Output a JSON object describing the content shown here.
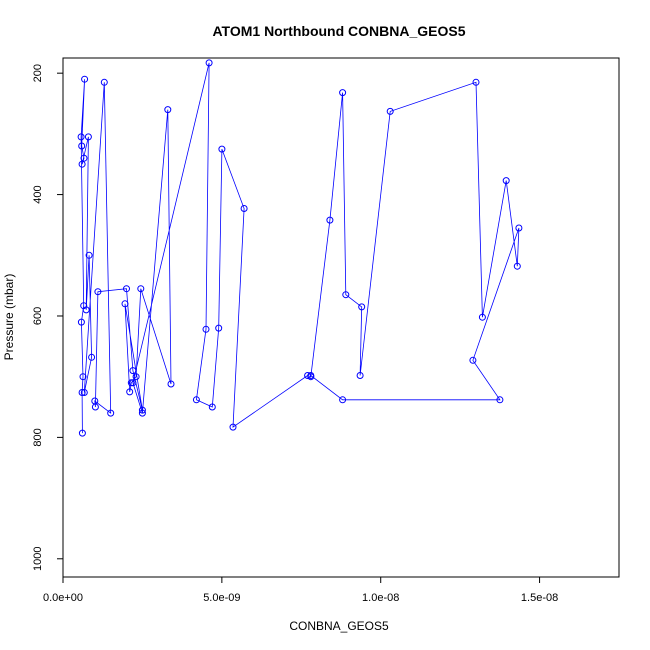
{
  "chart_data": {
    "type": "line",
    "title": "ATOM1 Northbound CONBNA_GEOS5",
    "xlabel": "CONBNA_GEOS5",
    "ylabel": "Pressure (mbar)",
    "xlim": [
      0,
      1.75e-08
    ],
    "ylim": [
      1030,
      175
    ],
    "y_reversed": true,
    "x_ticks": [
      0,
      5e-09,
      1e-08,
      1.5e-08
    ],
    "x_tick_labels": [
      "0.0e+00",
      "5.0e-09",
      "1.0e-08",
      "1.5e-08"
    ],
    "y_ticks": [
      200,
      400,
      600,
      800,
      1000
    ],
    "y_tick_labels": [
      "200",
      "400",
      "600",
      "800",
      "1000"
    ],
    "series_color": "#0000ff",
    "grid": false,
    "series": [
      {
        "x": [
          6.1e-10,
          6e-10,
          6.3e-10,
          5.8e-10,
          6.5e-10,
          5.7e-10,
          6.8e-10,
          5.9e-10,
          6.6e-10,
          6e-10,
          8e-10,
          7.3e-10,
          8.2e-10,
          9e-10,
          6.7e-10,
          1.3e-09,
          1.5e-09,
          1e-09,
          1.02e-09,
          1.1e-09,
          2e-09,
          2.2e-09,
          2.5e-09,
          1.95e-09,
          2.1e-09,
          2.15e-09,
          2.3e-09,
          2.45e-09,
          3.4e-09,
          3.3e-09,
          2.5e-09,
          2.2e-09,
          4.6e-09,
          4.5e-09,
          4.2e-09,
          4.7e-09,
          4.9e-09,
          5e-09,
          5.7e-09,
          5.35e-09,
          7.7e-09,
          7.8e-09,
          8.4e-09,
          8.8e-09,
          8.9e-09,
          9.4e-09,
          9.35e-09,
          1.03e-08,
          1.3e-08,
          1.32e-08,
          1.395e-08,
          1.43e-08,
          1.435e-08,
          1.29e-08,
          1.375e-08,
          8.8e-09,
          7.8e-09
        ],
        "y": [
          793,
          726,
          700,
          610,
          583,
          305,
          210,
          320,
          340,
          350,
          305,
          590,
          500,
          668,
          726,
          215,
          760,
          740,
          750,
          560,
          555,
          690,
          755,
          580,
          725,
          710,
          700,
          555,
          712,
          260,
          760,
          710,
          183,
          622,
          738,
          750,
          620,
          325,
          423,
          783,
          698,
          700,
          442,
          232,
          565,
          585,
          698,
          263,
          215,
          602,
          377,
          518,
          455,
          673,
          738,
          738,
          698
        ]
      }
    ]
  }
}
